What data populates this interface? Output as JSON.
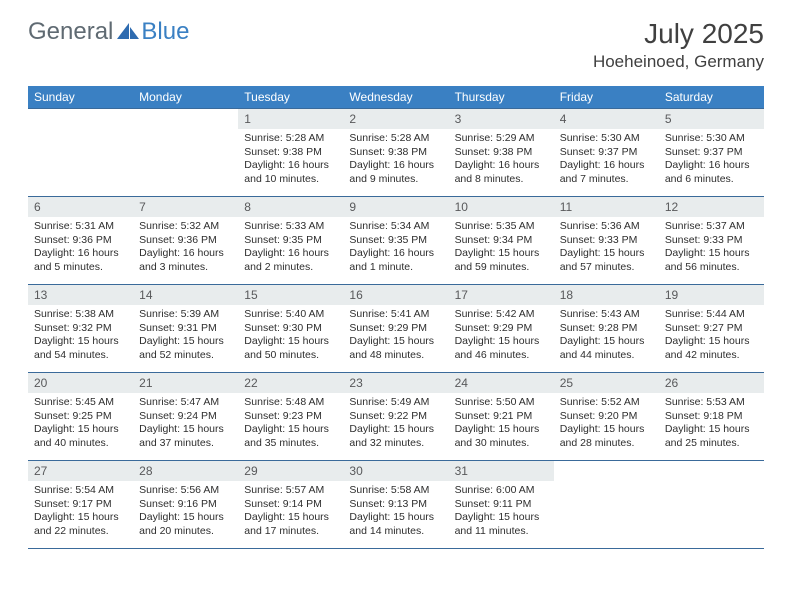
{
  "logo": {
    "general": "General",
    "blue": "Blue"
  },
  "title": "July 2025",
  "location": "Hoeheinoed, Germany",
  "colors": {
    "header_bg": "#3a80c3",
    "header_text": "#ffffff",
    "daynum_bg": "#e8eced",
    "daynum_text": "#58595b",
    "border": "#3a6a9a",
    "body_text": "#2e2e2e",
    "logo_gray": "#5f6a72",
    "logo_blue": "#3a80c3"
  },
  "weekdays": [
    "Sunday",
    "Monday",
    "Tuesday",
    "Wednesday",
    "Thursday",
    "Friday",
    "Saturday"
  ],
  "weeks": [
    [
      {
        "blank": true
      },
      {
        "blank": true
      },
      {
        "day": "1",
        "sunrise": "Sunrise: 5:28 AM",
        "sunset": "Sunset: 9:38 PM",
        "daylight": "Daylight: 16 hours and 10 minutes."
      },
      {
        "day": "2",
        "sunrise": "Sunrise: 5:28 AM",
        "sunset": "Sunset: 9:38 PM",
        "daylight": "Daylight: 16 hours and 9 minutes."
      },
      {
        "day": "3",
        "sunrise": "Sunrise: 5:29 AM",
        "sunset": "Sunset: 9:38 PM",
        "daylight": "Daylight: 16 hours and 8 minutes."
      },
      {
        "day": "4",
        "sunrise": "Sunrise: 5:30 AM",
        "sunset": "Sunset: 9:37 PM",
        "daylight": "Daylight: 16 hours and 7 minutes."
      },
      {
        "day": "5",
        "sunrise": "Sunrise: 5:30 AM",
        "sunset": "Sunset: 9:37 PM",
        "daylight": "Daylight: 16 hours and 6 minutes."
      }
    ],
    [
      {
        "day": "6",
        "sunrise": "Sunrise: 5:31 AM",
        "sunset": "Sunset: 9:36 PM",
        "daylight": "Daylight: 16 hours and 5 minutes."
      },
      {
        "day": "7",
        "sunrise": "Sunrise: 5:32 AM",
        "sunset": "Sunset: 9:36 PM",
        "daylight": "Daylight: 16 hours and 3 minutes."
      },
      {
        "day": "8",
        "sunrise": "Sunrise: 5:33 AM",
        "sunset": "Sunset: 9:35 PM",
        "daylight": "Daylight: 16 hours and 2 minutes."
      },
      {
        "day": "9",
        "sunrise": "Sunrise: 5:34 AM",
        "sunset": "Sunset: 9:35 PM",
        "daylight": "Daylight: 16 hours and 1 minute."
      },
      {
        "day": "10",
        "sunrise": "Sunrise: 5:35 AM",
        "sunset": "Sunset: 9:34 PM",
        "daylight": "Daylight: 15 hours and 59 minutes."
      },
      {
        "day": "11",
        "sunrise": "Sunrise: 5:36 AM",
        "sunset": "Sunset: 9:33 PM",
        "daylight": "Daylight: 15 hours and 57 minutes."
      },
      {
        "day": "12",
        "sunrise": "Sunrise: 5:37 AM",
        "sunset": "Sunset: 9:33 PM",
        "daylight": "Daylight: 15 hours and 56 minutes."
      }
    ],
    [
      {
        "day": "13",
        "sunrise": "Sunrise: 5:38 AM",
        "sunset": "Sunset: 9:32 PM",
        "daylight": "Daylight: 15 hours and 54 minutes."
      },
      {
        "day": "14",
        "sunrise": "Sunrise: 5:39 AM",
        "sunset": "Sunset: 9:31 PM",
        "daylight": "Daylight: 15 hours and 52 minutes."
      },
      {
        "day": "15",
        "sunrise": "Sunrise: 5:40 AM",
        "sunset": "Sunset: 9:30 PM",
        "daylight": "Daylight: 15 hours and 50 minutes."
      },
      {
        "day": "16",
        "sunrise": "Sunrise: 5:41 AM",
        "sunset": "Sunset: 9:29 PM",
        "daylight": "Daylight: 15 hours and 48 minutes."
      },
      {
        "day": "17",
        "sunrise": "Sunrise: 5:42 AM",
        "sunset": "Sunset: 9:29 PM",
        "daylight": "Daylight: 15 hours and 46 minutes."
      },
      {
        "day": "18",
        "sunrise": "Sunrise: 5:43 AM",
        "sunset": "Sunset: 9:28 PM",
        "daylight": "Daylight: 15 hours and 44 minutes."
      },
      {
        "day": "19",
        "sunrise": "Sunrise: 5:44 AM",
        "sunset": "Sunset: 9:27 PM",
        "daylight": "Daylight: 15 hours and 42 minutes."
      }
    ],
    [
      {
        "day": "20",
        "sunrise": "Sunrise: 5:45 AM",
        "sunset": "Sunset: 9:25 PM",
        "daylight": "Daylight: 15 hours and 40 minutes."
      },
      {
        "day": "21",
        "sunrise": "Sunrise: 5:47 AM",
        "sunset": "Sunset: 9:24 PM",
        "daylight": "Daylight: 15 hours and 37 minutes."
      },
      {
        "day": "22",
        "sunrise": "Sunrise: 5:48 AM",
        "sunset": "Sunset: 9:23 PM",
        "daylight": "Daylight: 15 hours and 35 minutes."
      },
      {
        "day": "23",
        "sunrise": "Sunrise: 5:49 AM",
        "sunset": "Sunset: 9:22 PM",
        "daylight": "Daylight: 15 hours and 32 minutes."
      },
      {
        "day": "24",
        "sunrise": "Sunrise: 5:50 AM",
        "sunset": "Sunset: 9:21 PM",
        "daylight": "Daylight: 15 hours and 30 minutes."
      },
      {
        "day": "25",
        "sunrise": "Sunrise: 5:52 AM",
        "sunset": "Sunset: 9:20 PM",
        "daylight": "Daylight: 15 hours and 28 minutes."
      },
      {
        "day": "26",
        "sunrise": "Sunrise: 5:53 AM",
        "sunset": "Sunset: 9:18 PM",
        "daylight": "Daylight: 15 hours and 25 minutes."
      }
    ],
    [
      {
        "day": "27",
        "sunrise": "Sunrise: 5:54 AM",
        "sunset": "Sunset: 9:17 PM",
        "daylight": "Daylight: 15 hours and 22 minutes."
      },
      {
        "day": "28",
        "sunrise": "Sunrise: 5:56 AM",
        "sunset": "Sunset: 9:16 PM",
        "daylight": "Daylight: 15 hours and 20 minutes."
      },
      {
        "day": "29",
        "sunrise": "Sunrise: 5:57 AM",
        "sunset": "Sunset: 9:14 PM",
        "daylight": "Daylight: 15 hours and 17 minutes."
      },
      {
        "day": "30",
        "sunrise": "Sunrise: 5:58 AM",
        "sunset": "Sunset: 9:13 PM",
        "daylight": "Daylight: 15 hours and 14 minutes."
      },
      {
        "day": "31",
        "sunrise": "Sunrise: 6:00 AM",
        "sunset": "Sunset: 9:11 PM",
        "daylight": "Daylight: 15 hours and 11 minutes."
      },
      {
        "blank": true
      },
      {
        "blank": true
      }
    ]
  ]
}
